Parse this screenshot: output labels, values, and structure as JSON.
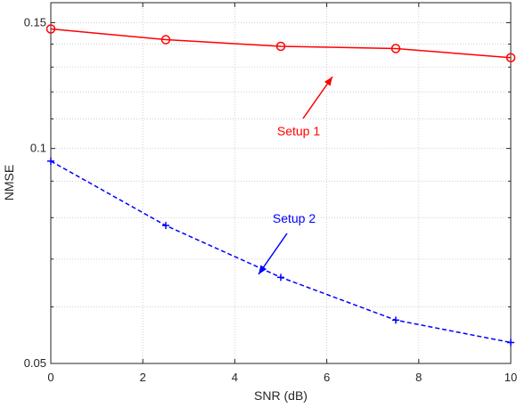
{
  "chart_data": {
    "type": "line",
    "xlabel": "SNR (dB)",
    "ylabel": "NMSE",
    "xlim": [
      0,
      10
    ],
    "ylim": [
      0.05,
      0.16
    ],
    "yscale": "log",
    "grid": true,
    "x_ticks": [
      0,
      2,
      4,
      6,
      8,
      10
    ],
    "x_tick_labels": [
      "0",
      "2",
      "4",
      "6",
      "8",
      "10"
    ],
    "y_ticks": [
      0.05,
      0.1,
      0.15
    ],
    "y_tick_labels": [
      "0.05",
      "0.1",
      "0.15"
    ],
    "y_minor_gridlines": [
      0.06,
      0.07,
      0.08,
      0.09,
      0.11,
      0.12,
      0.13,
      0.14
    ],
    "x": [
      0,
      2.5,
      5,
      7.5,
      10
    ],
    "series": [
      {
        "values": [
          0.147,
          0.142,
          0.139,
          0.138,
          0.134
        ],
        "color": "#ff0000",
        "line_style": "solid",
        "marker": "circle",
        "annotation": "Setup 1"
      },
      {
        "values": [
          0.096,
          0.078,
          0.066,
          0.0575,
          0.0535
        ],
        "color": "#0000ff",
        "line_style": "dashed",
        "marker": "plus",
        "annotation": "Setup 2"
      }
    ]
  }
}
